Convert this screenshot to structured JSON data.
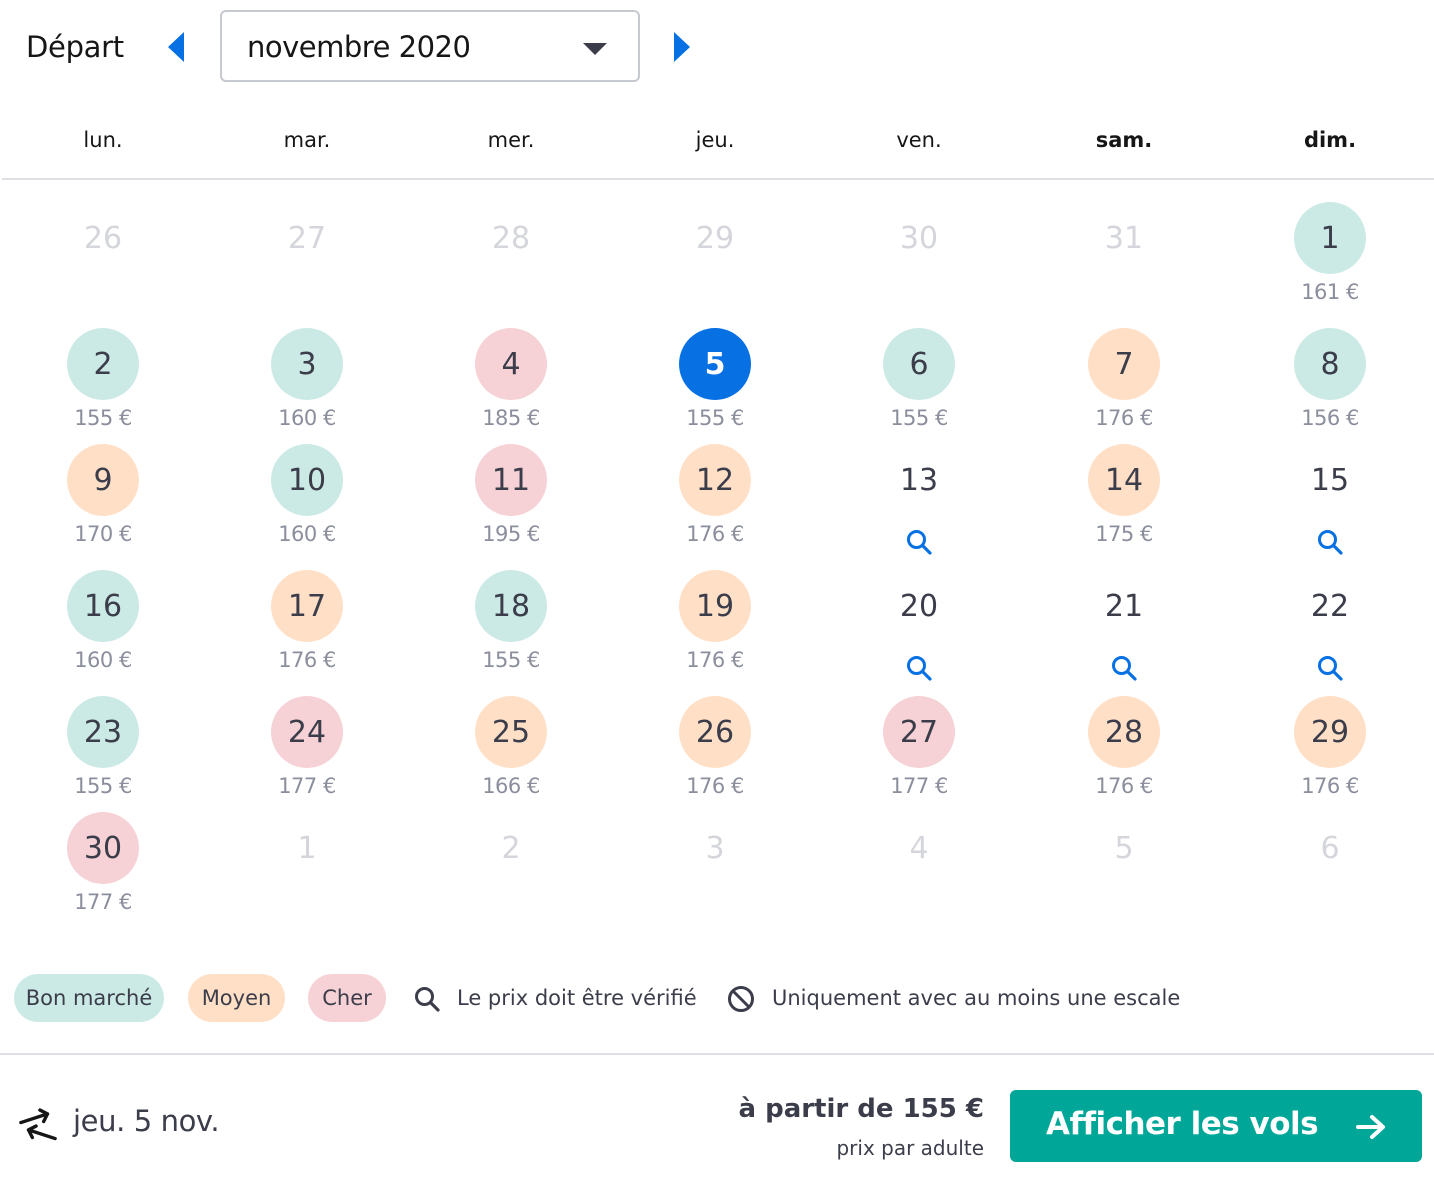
{
  "header": {
    "label": "Départ",
    "month": "novembre 2020"
  },
  "weekdays": [
    "lun.",
    "mar.",
    "mer.",
    "jeu.",
    "ven.",
    "sam.",
    "dim."
  ],
  "calendar": {
    "weeks": [
      [
        {
          "day": "26",
          "state": "outside",
          "price": ""
        },
        {
          "day": "27",
          "state": "outside",
          "price": ""
        },
        {
          "day": "28",
          "state": "outside",
          "price": ""
        },
        {
          "day": "29",
          "state": "outside",
          "price": ""
        },
        {
          "day": "30",
          "state": "outside",
          "price": ""
        },
        {
          "day": "31",
          "state": "outside",
          "price": ""
        },
        {
          "day": "1",
          "state": "cheap",
          "price": "161 €"
        }
      ],
      [
        {
          "day": "2",
          "state": "cheap",
          "price": "155 €"
        },
        {
          "day": "3",
          "state": "cheap",
          "price": "160 €"
        },
        {
          "day": "4",
          "state": "expensive",
          "price": "185 €"
        },
        {
          "day": "5",
          "state": "selected",
          "price": "155 €"
        },
        {
          "day": "6",
          "state": "cheap",
          "price": "155 €"
        },
        {
          "day": "7",
          "state": "medium",
          "price": "176 €"
        },
        {
          "day": "8",
          "state": "cheap",
          "price": "156 €"
        }
      ],
      [
        {
          "day": "9",
          "state": "medium",
          "price": "170 €"
        },
        {
          "day": "10",
          "state": "cheap",
          "price": "160 €"
        },
        {
          "day": "11",
          "state": "expensive",
          "price": "195 €"
        },
        {
          "day": "12",
          "state": "medium",
          "price": "176 €"
        },
        {
          "day": "13",
          "state": "check",
          "price": ""
        },
        {
          "day": "14",
          "state": "medium",
          "price": "175 €"
        },
        {
          "day": "15",
          "state": "check",
          "price": ""
        }
      ],
      [
        {
          "day": "16",
          "state": "cheap",
          "price": "160 €"
        },
        {
          "day": "17",
          "state": "medium",
          "price": "176 €"
        },
        {
          "day": "18",
          "state": "cheap",
          "price": "155 €"
        },
        {
          "day": "19",
          "state": "medium",
          "price": "176 €"
        },
        {
          "day": "20",
          "state": "check",
          "price": ""
        },
        {
          "day": "21",
          "state": "check",
          "price": ""
        },
        {
          "day": "22",
          "state": "check",
          "price": ""
        }
      ],
      [
        {
          "day": "23",
          "state": "cheap",
          "price": "155 €"
        },
        {
          "day": "24",
          "state": "expensive",
          "price": "177 €"
        },
        {
          "day": "25",
          "state": "medium",
          "price": "166 €"
        },
        {
          "day": "26",
          "state": "medium",
          "price": "176 €"
        },
        {
          "day": "27",
          "state": "expensive",
          "price": "177 €"
        },
        {
          "day": "28",
          "state": "medium",
          "price": "176 €"
        },
        {
          "day": "29",
          "state": "medium",
          "price": "176 €"
        }
      ],
      [
        {
          "day": "30",
          "state": "expensive",
          "price": "177 €"
        },
        {
          "day": "1",
          "state": "outside",
          "price": ""
        },
        {
          "day": "2",
          "state": "outside",
          "price": ""
        },
        {
          "day": "3",
          "state": "outside",
          "price": ""
        },
        {
          "day": "4",
          "state": "outside",
          "price": ""
        },
        {
          "day": "5",
          "state": "outside",
          "price": ""
        },
        {
          "day": "6",
          "state": "outside",
          "price": ""
        }
      ]
    ]
  },
  "legend": {
    "cheap": "Bon marché",
    "medium": "Moyen",
    "expensive": "Cher",
    "check": "Le prix doit être vérifié",
    "stopover": "Uniquement avec au moins une escale"
  },
  "footer": {
    "selected_date": "jeu. 5 nov.",
    "from_price": "à partir de 155 €",
    "per_adult": "prix par adulte",
    "cta_label": "Afficher les vols"
  },
  "colors": {
    "cheap": "#cceae5",
    "medium": "#ffe0c7",
    "expensive": "#f6d2d6",
    "selected": "#0770e3",
    "accent_blue": "#0770e3",
    "cta": "#00a698"
  },
  "icons": {
    "prev": "caret-left-icon",
    "next": "caret-right-icon",
    "dropdown": "chevron-down-icon",
    "check_price": "search-icon",
    "stopover": "prohibited-icon",
    "flight": "flight-outbound-icon",
    "cta": "arrow-right-icon"
  }
}
